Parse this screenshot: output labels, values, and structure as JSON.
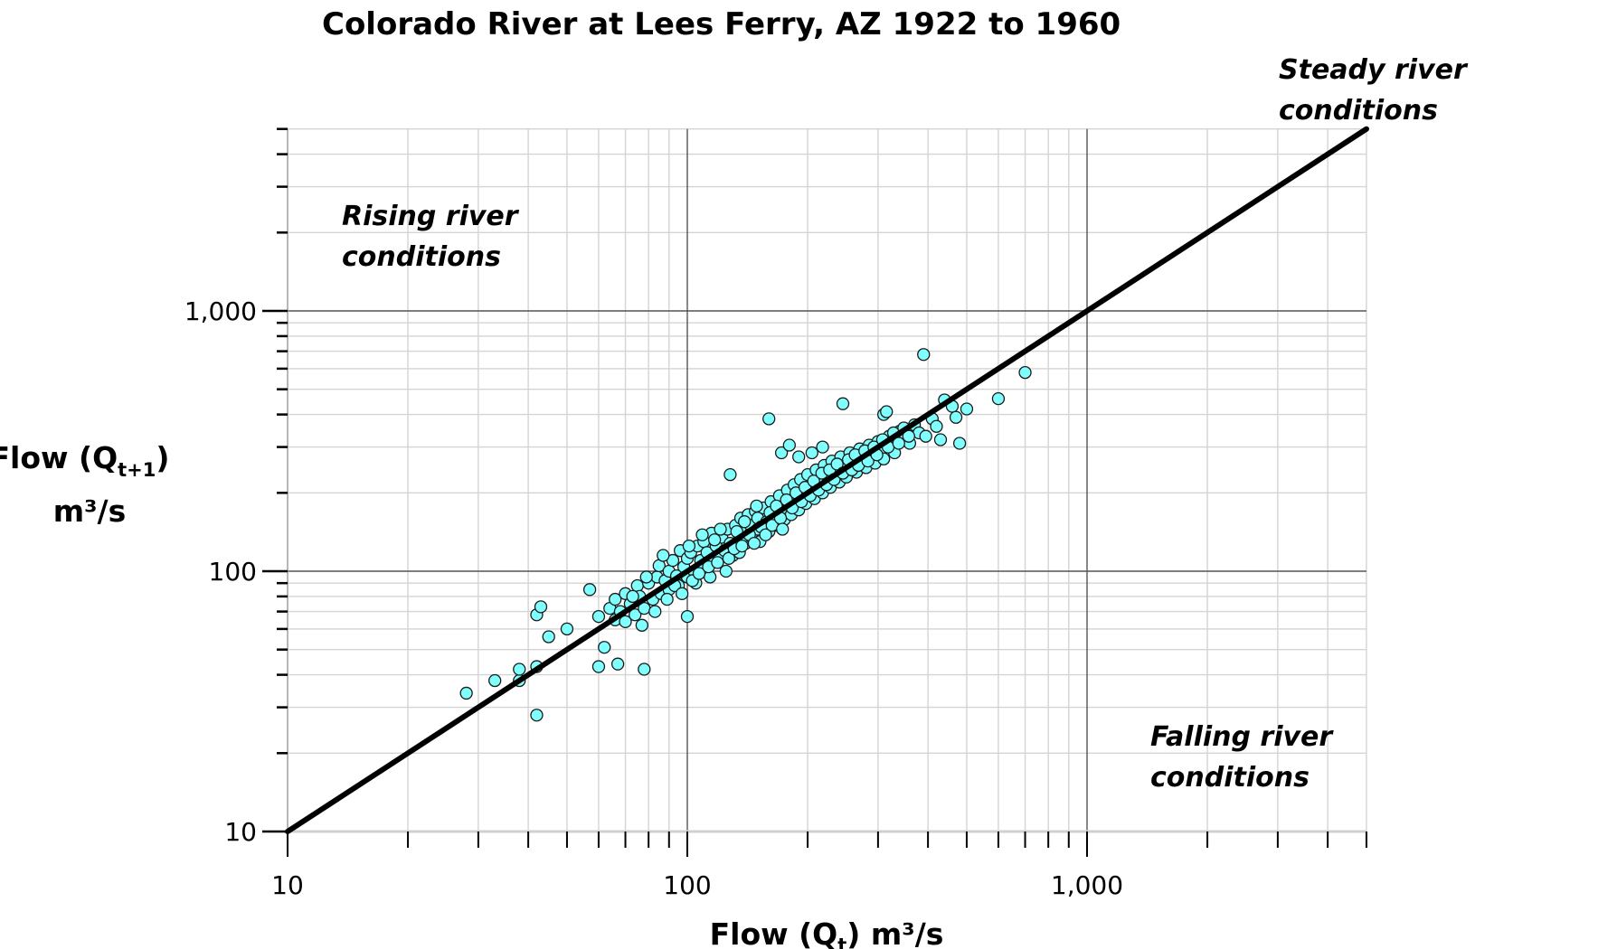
{
  "chart_data": {
    "type": "scatter",
    "title": "Colorado River at Lees Ferry, AZ 1922 to 1960",
    "xlabel": {
      "main": "Flow (Q",
      "sub": "t",
      "tail": ")  m³/s"
    },
    "ylabel": {
      "main": "Flow (Q",
      "sub": "t+1",
      "tail": ")",
      "line2": "m³/s"
    },
    "xscale": "log",
    "yscale": "log",
    "xlim": [
      10,
      5000
    ],
    "ylim": [
      10,
      5000
    ],
    "x_tick_labels": [
      {
        "value": 10,
        "label": "10"
      },
      {
        "value": 100,
        "label": "100"
      },
      {
        "value": 1000,
        "label": "1,000"
      }
    ],
    "y_tick_labels": [
      {
        "value": 10,
        "label": "10"
      },
      {
        "value": 100,
        "label": "100"
      },
      {
        "value": 1000,
        "label": "1,000"
      }
    ],
    "grid": true,
    "reference_line": {
      "name": "steady",
      "x": [
        10,
        5000
      ],
      "y": [
        10,
        5000
      ],
      "color": "#000000"
    },
    "annotations": [
      {
        "id": "rising",
        "lines": [
          "Rising river",
          "conditions"
        ]
      },
      {
        "id": "steady",
        "lines": [
          "Steady river",
          "conditions"
        ]
      },
      {
        "id": "falling",
        "lines": [
          "Falling river",
          "conditions"
        ]
      }
    ],
    "marker_color": "#80ffff",
    "marker_edge": "#1a1a1a",
    "points": [
      [
        28,
        34
      ],
      [
        33,
        38
      ],
      [
        38,
        38
      ],
      [
        38,
        42
      ],
      [
        42,
        28
      ],
      [
        42,
        43
      ],
      [
        42,
        68
      ],
      [
        43,
        73
      ],
      [
        45,
        56
      ],
      [
        50,
        60
      ],
      [
        57,
        85
      ],
      [
        60,
        67
      ],
      [
        60,
        43
      ],
      [
        62,
        51
      ],
      [
        67,
        44
      ],
      [
        78,
        42
      ],
      [
        66,
        65
      ],
      [
        100,
        67
      ],
      [
        128,
        235
      ],
      [
        160,
        385
      ],
      [
        245,
        440
      ],
      [
        390,
        680
      ],
      [
        600,
        460
      ],
      [
        700,
        580
      ],
      [
        480,
        310
      ],
      [
        430,
        320
      ],
      [
        440,
        455
      ],
      [
        460,
        430
      ],
      [
        500,
        420
      ],
      [
        470,
        390
      ],
      [
        310,
        400
      ],
      [
        315,
        410
      ],
      [
        172,
        285
      ],
      [
        180,
        305
      ],
      [
        205,
        285
      ],
      [
        218,
        300
      ],
      [
        190,
        275
      ],
      [
        64,
        72
      ],
      [
        66,
        78
      ],
      [
        68,
        70
      ],
      [
        70,
        82
      ],
      [
        72,
        75
      ],
      [
        74,
        68
      ],
      [
        75,
        88
      ],
      [
        76,
        80
      ],
      [
        78,
        72
      ],
      [
        80,
        90
      ],
      [
        82,
        78
      ],
      [
        84,
        95
      ],
      [
        85,
        105
      ],
      [
        86,
        82
      ],
      [
        88,
        92
      ],
      [
        90,
        100
      ],
      [
        90,
        85
      ],
      [
        92,
        110
      ],
      [
        94,
        96
      ],
      [
        95,
        88
      ],
      [
        96,
        120
      ],
      [
        98,
        104
      ],
      [
        100,
        95
      ],
      [
        100,
        112
      ],
      [
        102,
        118
      ],
      [
        104,
        100
      ],
      [
        105,
        90
      ],
      [
        106,
        125
      ],
      [
        108,
        110
      ],
      [
        110,
        102
      ],
      [
        110,
        130
      ],
      [
        112,
        118
      ],
      [
        114,
        95
      ],
      [
        115,
        140
      ],
      [
        116,
        108
      ],
      [
        118,
        125
      ],
      [
        120,
        112
      ],
      [
        122,
        135
      ],
      [
        124,
        120
      ],
      [
        125,
        100
      ],
      [
        126,
        145
      ],
      [
        128,
        128
      ],
      [
        130,
        115
      ],
      [
        132,
        150
      ],
      [
        134,
        130
      ],
      [
        135,
        118
      ],
      [
        136,
        160
      ],
      [
        138,
        140
      ],
      [
        140,
        128
      ],
      [
        142,
        165
      ],
      [
        144,
        150
      ],
      [
        145,
        135
      ],
      [
        148,
        170
      ],
      [
        150,
        145
      ],
      [
        150,
        160
      ],
      [
        152,
        130
      ],
      [
        155,
        175
      ],
      [
        158,
        155
      ],
      [
        160,
        142
      ],
      [
        162,
        185
      ],
      [
        165,
        165
      ],
      [
        168,
        150
      ],
      [
        170,
        195
      ],
      [
        172,
        170
      ],
      [
        175,
        158
      ],
      [
        178,
        205
      ],
      [
        180,
        180
      ],
      [
        182,
        165
      ],
      [
        185,
        215
      ],
      [
        188,
        190
      ],
      [
        190,
        172
      ],
      [
        192,
        225
      ],
      [
        195,
        200
      ],
      [
        198,
        182
      ],
      [
        200,
        235
      ],
      [
        205,
        210
      ],
      [
        208,
        190
      ],
      [
        210,
        245
      ],
      [
        215,
        220
      ],
      [
        218,
        200
      ],
      [
        220,
        255
      ],
      [
        225,
        230
      ],
      [
        228,
        210
      ],
      [
        230,
        265
      ],
      [
        235,
        240
      ],
      [
        240,
        220
      ],
      [
        242,
        275
      ],
      [
        248,
        250
      ],
      [
        250,
        230
      ],
      [
        255,
        285
      ],
      [
        260,
        260
      ],
      [
        265,
        240
      ],
      [
        270,
        295
      ],
      [
        275,
        270
      ],
      [
        280,
        250
      ],
      [
        285,
        305
      ],
      [
        290,
        280
      ],
      [
        295,
        260
      ],
      [
        300,
        315
      ],
      [
        305,
        290
      ],
      [
        310,
        270
      ],
      [
        320,
        330
      ],
      [
        325,
        300
      ],
      [
        330,
        285
      ],
      [
        340,
        345
      ],
      [
        350,
        320
      ],
      [
        360,
        310
      ],
      [
        370,
        365
      ],
      [
        380,
        340
      ],
      [
        395,
        330
      ],
      [
        410,
        385
      ],
      [
        420,
        360
      ],
      [
        70,
        64
      ],
      [
        73,
        80
      ],
      [
        77,
        62
      ],
      [
        79,
        95
      ],
      [
        83,
        70
      ],
      [
        87,
        115
      ],
      [
        89,
        78
      ],
      [
        93,
        88
      ],
      [
        97,
        82
      ],
      [
        101,
        125
      ],
      [
        103,
        92
      ],
      [
        107,
        98
      ],
      [
        109,
        138
      ],
      [
        113,
        104
      ],
      [
        117,
        132
      ],
      [
        119,
        108
      ],
      [
        121,
        145
      ],
      [
        127,
        112
      ],
      [
        131,
        122
      ],
      [
        133,
        142
      ],
      [
        137,
        125
      ],
      [
        139,
        155
      ],
      [
        143,
        138
      ],
      [
        147,
        128
      ],
      [
        149,
        178
      ],
      [
        153,
        148
      ],
      [
        157,
        138
      ],
      [
        161,
        168
      ],
      [
        163,
        150
      ],
      [
        167,
        178
      ],
      [
        171,
        160
      ],
      [
        173,
        145
      ],
      [
        177,
        188
      ],
      [
        183,
        175
      ],
      [
        187,
        200
      ],
      [
        193,
        185
      ],
      [
        197,
        210
      ],
      [
        203,
        195
      ],
      [
        207,
        222
      ],
      [
        213,
        205
      ],
      [
        217,
        238
      ],
      [
        223,
        215
      ],
      [
        227,
        245
      ],
      [
        233,
        225
      ],
      [
        237,
        258
      ],
      [
        245,
        238
      ],
      [
        253,
        268
      ],
      [
        258,
        245
      ],
      [
        263,
        280
      ],
      [
        268,
        255
      ],
      [
        278,
        290
      ],
      [
        283,
        265
      ],
      [
        293,
        300
      ],
      [
        298,
        280
      ],
      [
        308,
        320
      ],
      [
        318,
        300
      ],
      [
        328,
        340
      ],
      [
        338,
        310
      ],
      [
        348,
        355
      ],
      [
        358,
        330
      ]
    ]
  }
}
